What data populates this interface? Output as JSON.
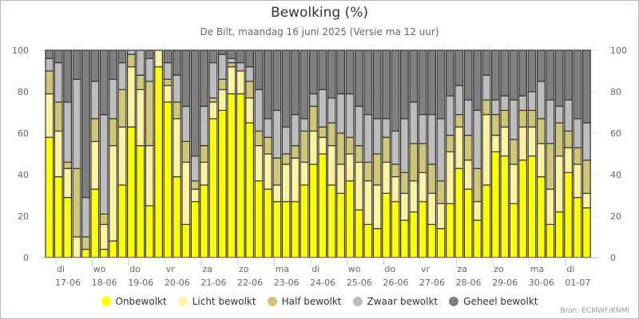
{
  "chart_data": {
    "type": "bar",
    "stacked": true,
    "title": "Bewolking (%)",
    "subtitle": "De Bilt, maandag 16 juni 2025 (Versie ma 12 uur)",
    "xlabel": "",
    "ylabel": "",
    "ylim": [
      0,
      100
    ],
    "yticks": [
      0,
      20,
      40,
      60,
      80,
      100
    ],
    "grid": true,
    "legend_position": "bottom",
    "x_tick_labels": [
      {
        "day": "di",
        "date": "17-06"
      },
      {
        "day": "wo",
        "date": "18-06"
      },
      {
        "day": "do",
        "date": "19-06"
      },
      {
        "day": "vr",
        "date": "20-06"
      },
      {
        "day": "za",
        "date": "21-06"
      },
      {
        "day": "zo",
        "date": "22-06"
      },
      {
        "day": "ma",
        "date": "23-06"
      },
      {
        "day": "di",
        "date": "24-06"
      },
      {
        "day": "wo",
        "date": "25-06"
      },
      {
        "day": "do",
        "date": "26-06"
      },
      {
        "day": "vr",
        "date": "27-06"
      },
      {
        "day": "za",
        "date": "28-06"
      },
      {
        "day": "zo",
        "date": "29-06"
      },
      {
        "day": "ma",
        "date": "30-06"
      },
      {
        "day": "di",
        "date": "01-07"
      }
    ],
    "bar_count": 60,
    "series": [
      {
        "name": "Onbewolkt",
        "color": "#ffff00",
        "values": [
          58,
          39,
          29,
          0,
          4,
          33,
          4,
          8,
          35,
          63,
          54,
          25,
          92,
          75,
          39,
          16,
          27,
          35,
          67,
          71,
          79,
          79,
          65,
          37,
          33,
          27,
          27,
          27,
          35,
          45,
          50,
          35,
          31,
          37,
          23,
          16,
          14,
          31,
          27,
          18,
          22,
          27,
          16,
          14,
          26,
          43,
          33,
          18,
          35,
          51,
          49,
          26,
          47,
          49,
          39,
          16,
          22,
          41,
          29,
          24
        ]
      },
      {
        "name": "Licht bewolkt",
        "color": "#fff3a0",
        "values": [
          21,
          22,
          14,
          10,
          0,
          23,
          12,
          46,
          28,
          29,
          27,
          29,
          8,
          8,
          28,
          30,
          6,
          11,
          8,
          10,
          13,
          11,
          12,
          17,
          17,
          8,
          18,
          21,
          11,
          16,
          8,
          19,
          14,
          13,
          23,
          21,
          21,
          15,
          12,
          13,
          15,
          14,
          15,
          12,
          25,
          20,
          14,
          9,
          34,
          8,
          14,
          19,
          16,
          14,
          16,
          17,
          27,
          12,
          16,
          7
        ]
      },
      {
        "name": "Half bewolkt",
        "color": "#cfc775",
        "values": [
          11,
          14,
          3,
          33,
          6,
          11,
          5,
          13,
          18,
          6,
          7,
          31,
          0,
          3,
          8,
          10,
          4,
          8,
          2,
          5,
          2,
          0,
          8,
          7,
          8,
          13,
          5,
          6,
          15,
          12,
          5,
          11,
          15,
          8,
          8,
          9,
          15,
          12,
          6,
          10,
          18,
          14,
          14,
          11,
          8,
          6,
          12,
          16,
          7,
          10,
          8,
          12,
          8,
          8,
          12,
          22,
          16,
          8,
          8,
          16
        ]
      },
      {
        "name": "Zwaar bewolkt",
        "color": "#bdbdbd",
        "values": [
          6,
          19,
          29,
          43,
          19,
          18,
          48,
          19,
          13,
          2,
          12,
          11,
          0,
          8,
          13,
          17,
          12,
          19,
          17,
          12,
          2,
          4,
          7,
          20,
          9,
          23,
          13,
          15,
          6,
          6,
          18,
          12,
          19,
          21,
          19,
          23,
          17,
          9,
          16,
          26,
          20,
          14,
          24,
          30,
          19,
          14,
          17,
          28,
          12,
          7,
          7,
          19,
          7,
          9,
          18,
          21,
          8,
          15,
          14,
          18
        ]
      },
      {
        "name": "Geheel bewolkt",
        "color": "#808080",
        "values": [
          4,
          6,
          25,
          14,
          71,
          15,
          31,
          14,
          6,
          0,
          0,
          4,
          0,
          6,
          12,
          27,
          51,
          27,
          6,
          2,
          4,
          6,
          8,
          19,
          33,
          29,
          37,
          31,
          33,
          21,
          19,
          23,
          21,
          21,
          27,
          31,
          33,
          33,
          39,
          33,
          25,
          31,
          31,
          33,
          22,
          17,
          24,
          29,
          12,
          24,
          22,
          24,
          22,
          20,
          15,
          24,
          27,
          24,
          33,
          35
        ]
      }
    ],
    "source": "Bron: ECMWF/KNMI"
  }
}
